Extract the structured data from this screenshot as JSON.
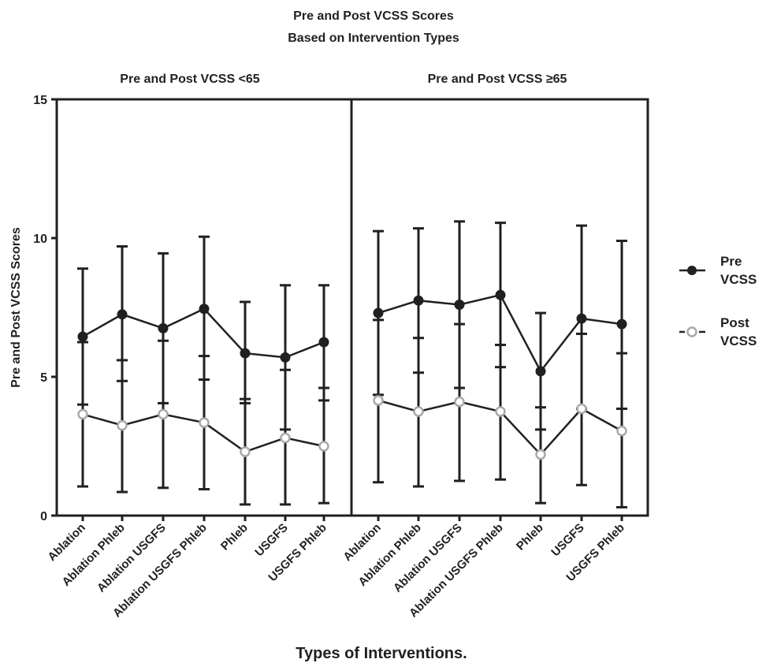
{
  "chart_data": {
    "type": "line",
    "title": "Pre and Post VCSS Scores",
    "subtitle": "Based on Intervention Types",
    "xlabel": "Types of Interventions.",
    "ylabel": "Pre and Post VCSS Scores",
    "ylim": [
      0,
      15
    ],
    "yticks": [
      "0",
      "5",
      "10",
      "15"
    ],
    "grid": false,
    "legend_position": "right",
    "categories": [
      "Ablation",
      "Ablation Phleb",
      "Ablation USGFS",
      "Ablation USGFS Phleb",
      "Phleb",
      "USGFS",
      "USGFS Phleb"
    ],
    "panels": [
      {
        "title": "Pre and Post VCSS  <65",
        "series": [
          {
            "name": "Pre VCSS",
            "values": [
              6.45,
              7.25,
              6.75,
              7.45,
              5.85,
              5.7,
              6.25
            ],
            "error_low": [
              4.0,
              4.85,
              4.05,
              4.9,
              4.05,
              3.1,
              4.15
            ],
            "error_high": [
              8.9,
              9.7,
              9.45,
              10.05,
              7.7,
              8.3,
              8.3
            ]
          },
          {
            "name": "Post VCSS",
            "values": [
              3.65,
              3.25,
              3.65,
              3.35,
              2.3,
              2.8,
              2.5
            ],
            "error_low": [
              1.05,
              0.85,
              1.0,
              0.95,
              0.4,
              0.4,
              0.45
            ],
            "error_high": [
              6.25,
              5.6,
              6.3,
              5.75,
              4.2,
              5.25,
              4.6
            ]
          }
        ]
      },
      {
        "title": "Pre and Post VCSS  ≥65",
        "series": [
          {
            "name": "Pre VCSS",
            "values": [
              7.3,
              7.75,
              7.6,
              7.95,
              5.2,
              7.1,
              6.9
            ],
            "error_low": [
              4.35,
              5.15,
              4.6,
              5.35,
              3.1,
              3.85,
              3.85
            ],
            "error_high": [
              10.25,
              10.35,
              10.6,
              10.55,
              7.3,
              10.45,
              9.9
            ]
          },
          {
            "name": "Post VCSS",
            "values": [
              4.15,
              3.75,
              4.1,
              3.75,
              2.2,
              3.85,
              3.05
            ],
            "error_low": [
              1.2,
              1.05,
              1.25,
              1.3,
              0.45,
              1.1,
              0.3
            ],
            "error_high": [
              7.05,
              6.4,
              6.9,
              6.15,
              3.9,
              6.55,
              5.85
            ]
          }
        ]
      }
    ],
    "legend": [
      {
        "line1": "Pre",
        "line2": "VCSS",
        "marker": "filled-circle",
        "color": "#231f20"
      },
      {
        "line1": "Post",
        "line2": "VCSS",
        "marker": "open-circle",
        "color": "#a7a9ac"
      }
    ]
  }
}
